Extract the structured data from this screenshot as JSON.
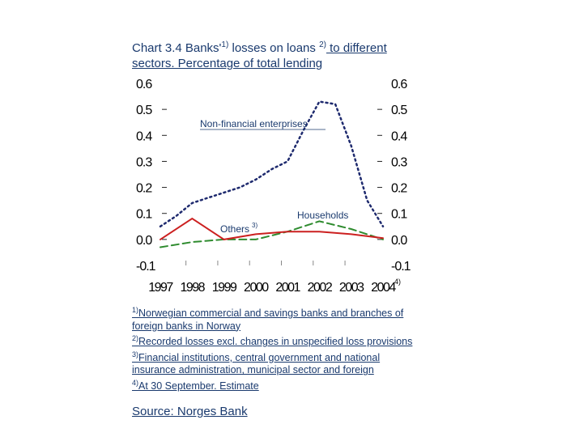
{
  "title": {
    "part1": "Chart 3.4 Banks'",
    "sup1": "1)",
    "part2": " losses on loans ",
    "sup2": "2)",
    "part3": " to different sectors. Percentage of total lending"
  },
  "chart_data": {
    "type": "line",
    "categories": [
      "1997",
      "1998",
      "1999",
      "2000",
      "2001",
      "2002",
      "2003",
      "2004"
    ],
    "last_category_sup": "4)",
    "ylim": [
      -0.1,
      0.6
    ],
    "yticks_left": [
      "0.6",
      "0.5",
      "0.4",
      "0.3",
      "0.2",
      "0.1",
      "0.0",
      "-0.1"
    ],
    "yticks_right": [
      "0.6",
      "0.5",
      "0.4",
      "0.3",
      "0.2",
      "0.1",
      "0.0",
      "-0.1"
    ],
    "series": [
      {
        "name": "Non-financial enterprises",
        "color": "#1e2a6e",
        "style": "dotted",
        "x": [
          0,
          0.5,
          1,
          1.5,
          2,
          2.5,
          3,
          3.5,
          4,
          4.5,
          5,
          5.5,
          6,
          6.5,
          7
        ],
        "values": [
          0.05,
          0.09,
          0.14,
          0.16,
          0.18,
          0.2,
          0.23,
          0.27,
          0.3,
          0.42,
          0.53,
          0.52,
          0.36,
          0.15,
          0.05
        ]
      },
      {
        "name": "Households",
        "color": "#2e8b2e",
        "style": "dashed",
        "x": [
          0,
          1,
          2,
          3,
          4,
          5,
          6,
          7
        ],
        "values": [
          -0.03,
          -0.01,
          0.0,
          0.0,
          0.03,
          0.07,
          0.04,
          0.0
        ]
      },
      {
        "name": "Others",
        "sup": "3)",
        "color": "#cc2020",
        "style": "solid",
        "x": [
          0,
          1,
          2,
          3,
          4,
          5,
          6,
          7
        ],
        "values": [
          0.0,
          0.08,
          0.0,
          0.02,
          0.03,
          0.03,
          0.02,
          0.005
        ]
      }
    ],
    "labels": {
      "nonfin": "Non-financial enterprises",
      "households": "Households",
      "others": "Others",
      "others_sup": "3)"
    }
  },
  "footnotes": [
    {
      "sup": "1)",
      "text": "Norwegian commercial and savings banks and branches of foreign banks in Norway"
    },
    {
      "sup": "2)",
      "text": "Recorded losses excl. changes in unspecified loss provisions"
    },
    {
      "sup": "3)",
      "text": "Financial institutions, central government and national insurance administration, municipal sector and foreign"
    },
    {
      "sup": "4)",
      "text": "At 30 September. Estimate"
    }
  ],
  "source": "Source: Norges Bank"
}
